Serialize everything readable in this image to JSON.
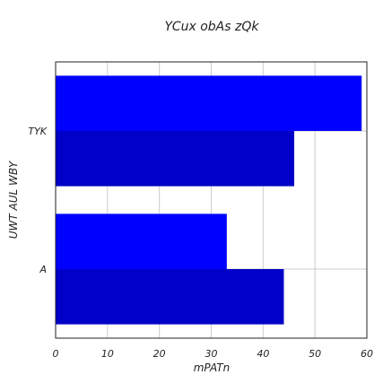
{
  "chart_data": {
    "type": "bar",
    "orientation": "horizontal",
    "title": "YCux  obAs zQk",
    "xlabel": "mPATn",
    "ylabel": "UWT AUL WBY",
    "categories": [
      "TYK",
      "A"
    ],
    "series": [
      {
        "values": [
          59,
          33
        ],
        "color": "#0000ff"
      },
      {
        "values": [
          46,
          44
        ],
        "color": "#0000c8"
      }
    ],
    "xlim": [
      0,
      60
    ],
    "xticks": [
      0,
      10,
      20,
      30,
      40,
      50,
      60
    ],
    "grid": true,
    "legend": false
  }
}
